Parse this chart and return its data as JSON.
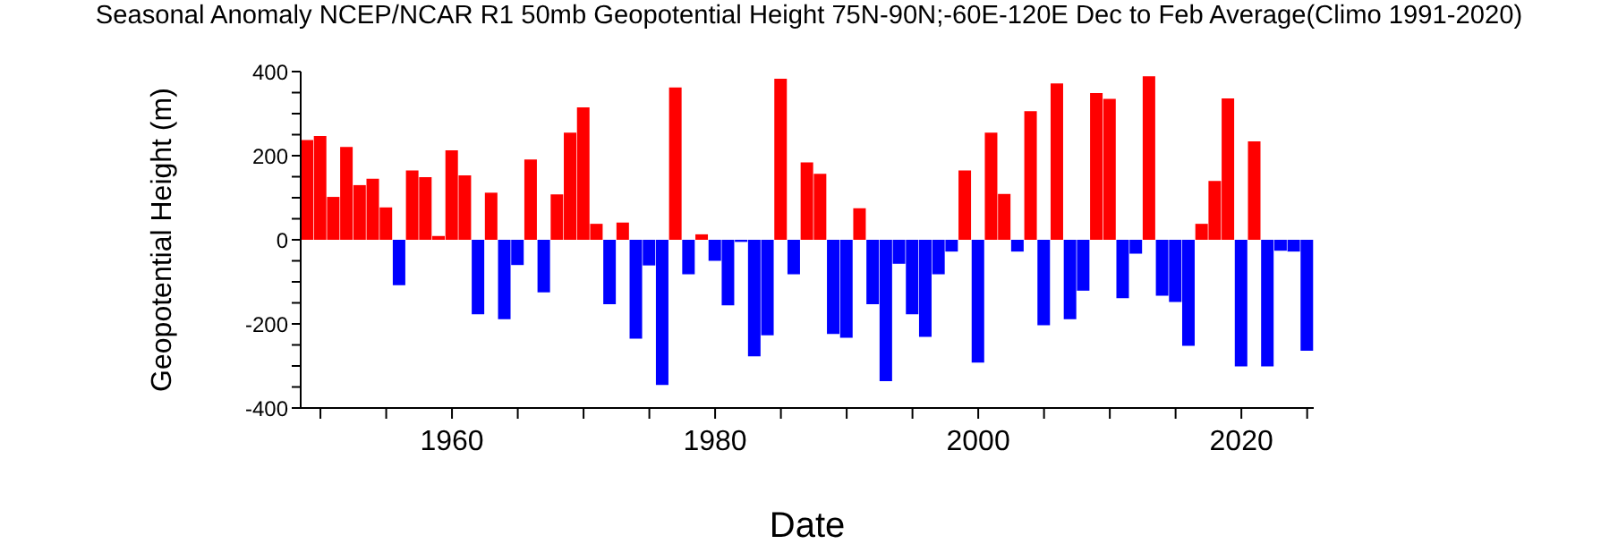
{
  "chart_data": {
    "type": "bar",
    "title": "Seasonal Anomaly NCEP/NCAR R1 50mb Geopotential Height 75N-90N;-60E-120E Dec to Feb Average(Climo 1991-2020)",
    "xlabel": "Date",
    "ylabel": "Geopotential Height (m)",
    "x": [
      1949,
      1950,
      1951,
      1952,
      1953,
      1954,
      1955,
      1956,
      1957,
      1958,
      1959,
      1960,
      1961,
      1962,
      1963,
      1964,
      1965,
      1966,
      1967,
      1968,
      1969,
      1970,
      1971,
      1972,
      1973,
      1974,
      1975,
      1976,
      1977,
      1978,
      1979,
      1980,
      1981,
      1982,
      1983,
      1984,
      1985,
      1986,
      1987,
      1988,
      1989,
      1990,
      1991,
      1992,
      1993,
      1994,
      1995,
      1996,
      1997,
      1998,
      1999,
      2000,
      2001,
      2002,
      2003,
      2004,
      2005,
      2006,
      2007,
      2008,
      2009,
      2010,
      2011,
      2012,
      2013,
      2014,
      2015,
      2016,
      2017,
      2018,
      2019,
      2020,
      2021,
      2022,
      2023,
      2024,
      2025
    ],
    "values": [
      237,
      247,
      102,
      221,
      130,
      145,
      77,
      -108,
      165,
      149,
      9,
      213,
      153,
      -177,
      112,
      -189,
      -60,
      191,
      -125,
      108,
      255,
      315,
      38,
      -153,
      41,
      -235,
      -61,
      -345,
      362,
      -82,
      13,
      -50,
      -156,
      -5,
      -277,
      -227,
      383,
      -82,
      184,
      157,
      -224,
      -233,
      75,
      -153,
      -336,
      -57,
      -177,
      -231,
      -82,
      -28,
      165,
      -292,
      255,
      109,
      -28,
      306,
      -203,
      372,
      -189,
      -121,
      349,
      335,
      -139,
      -33,
      389,
      -133,
      -148,
      -252,
      38,
      140,
      336,
      -301,
      234,
      -301,
      -26,
      -28,
      -264
    ],
    "colors": [
      "#ff0000",
      "#ff0000",
      "#ff0000",
      "#ff0000",
      "#ff0000",
      "#ff0000",
      "#ff0000",
      "#0000ff",
      "#ff0000",
      "#ff0000",
      "#ff0000",
      "#ff0000",
      "#ff0000",
      "#0000ff",
      "#ff0000",
      "#0000ff",
      "#0000ff",
      "#ff0000",
      "#0000ff",
      "#ff0000",
      "#ff0000",
      "#ff0000",
      "#ff0000",
      "#0000ff",
      "#ff0000",
      "#0000ff",
      "#0000ff",
      "#0000ff",
      "#ff0000",
      "#0000ff",
      "#ff0000",
      "#0000ff",
      "#0000ff",
      "#0000ff",
      "#0000ff",
      "#0000ff",
      "#ff0000",
      "#0000ff",
      "#ff0000",
      "#ff0000",
      "#0000ff",
      "#0000ff",
      "#ff0000",
      "#0000ff",
      "#0000ff",
      "#0000ff",
      "#0000ff",
      "#0000ff",
      "#0000ff",
      "#0000ff",
      "#ff0000",
      "#0000ff",
      "#ff0000",
      "#ff0000",
      "#0000ff",
      "#ff0000",
      "#0000ff",
      "#ff0000",
      "#0000ff",
      "#0000ff",
      "#ff0000",
      "#ff0000",
      "#0000ff",
      "#0000ff",
      "#ff0000",
      "#0000ff",
      "#0000ff",
      "#0000ff",
      "#ff0000",
      "#ff0000",
      "#ff0000",
      "#0000ff",
      "#ff0000",
      "#0000ff",
      "#0000ff",
      "#0000ff",
      "#0000ff"
    ],
    "xlim": [
      1948.5,
      2025.5
    ],
    "xticks": [
      {
        "value": 1950,
        "label": null
      },
      {
        "value": 1955,
        "label": null
      },
      1960,
      {
        "value": 1965,
        "label": null
      },
      {
        "value": 1970,
        "label": null
      },
      {
        "value": 1975,
        "label": null
      },
      1980,
      {
        "value": 1985,
        "label": null
      },
      {
        "value": 1990,
        "label": null
      },
      {
        "value": 1995,
        "label": null
      },
      2000,
      {
        "value": 2005,
        "label": null
      },
      {
        "value": 2010,
        "label": null
      },
      {
        "value": 2015,
        "label": null
      },
      2020,
      {
        "value": 2025,
        "label": null
      }
    ],
    "ylim": [
      -400,
      400
    ],
    "yticks": [
      -400,
      {
        "value": -350,
        "label": null
      },
      {
        "value": -300,
        "label": null
      },
      {
        "value": -250,
        "label": null
      },
      -200,
      {
        "value": -150,
        "label": null
      },
      {
        "value": -100,
        "label": null
      },
      {
        "value": -50,
        "label": null
      },
      0,
      {
        "value": 50,
        "label": null
      },
      {
        "value": 100,
        "label": null
      },
      {
        "value": 150,
        "label": null
      },
      200,
      {
        "value": 250,
        "label": null
      },
      {
        "value": 300,
        "label": null
      },
      {
        "value": 350,
        "label": null
      },
      400
    ],
    "grid": false,
    "legend": false
  }
}
